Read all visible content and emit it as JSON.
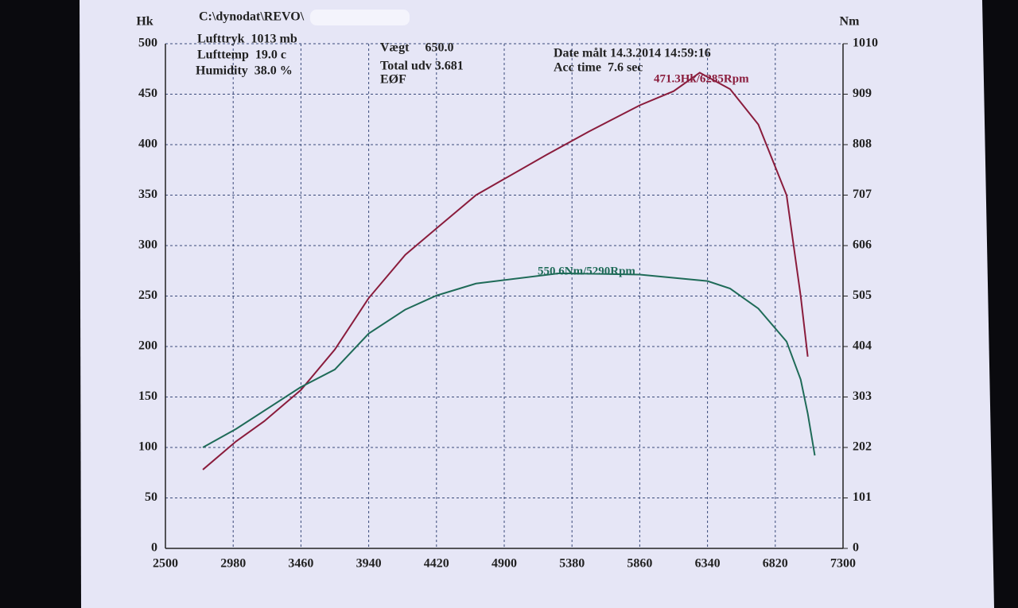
{
  "chart_data": {
    "type": "line",
    "title": "C:\\dynodat\\REVO\\",
    "info": [
      "Lufttryk  1013 mb",
      "Lufttemp  19.0 c",
      "Humidity  38.0 %",
      "Vægt     650.0",
      "Total udv 3.681",
      "EØF",
      "Date målt 14.3.2014 14:59:16",
      "Acc time  7.6 sec"
    ],
    "annotations": [
      "471.3Hk/6285Rpm",
      "550.6Nm/5290Rpm"
    ],
    "xlim": [
      2500,
      7300
    ],
    "xticks": [
      2500,
      2980,
      3460,
      3940,
      4420,
      4900,
      5380,
      5860,
      6340,
      6820,
      7300
    ],
    "ylim": [
      0,
      500
    ],
    "yticks": [
      0,
      50,
      100,
      150,
      200,
      250,
      300,
      350,
      400,
      450,
      500
    ],
    "y2lim": [
      0,
      1010
    ],
    "y2ticks": [
      0,
      101,
      202,
      303,
      404,
      505,
      606,
      707,
      808,
      909,
      1010
    ],
    "grid": true,
    "series": [
      {
        "name": "Hk",
        "color": "#8a1c3c",
        "x": [
          2765,
          3000,
          3200,
          3460,
          3700,
          3940,
          4200,
          4420,
          4700,
          4900,
          5200,
          5500,
          5860,
          6100,
          6285,
          6500,
          6700,
          6900,
          7000,
          7050
        ],
        "values": [
          78,
          106,
          126,
          157,
          197,
          248,
          291,
          317,
          350,
          366,
          390,
          413,
          439,
          453,
          471.3,
          455,
          420,
          350,
          250,
          190
        ]
      },
      {
        "name": "Nm",
        "color": "#1f6b58",
        "axis": "y2",
        "x": [
          2765,
          3000,
          3460,
          3700,
          3940,
          4200,
          4420,
          4700,
          4900,
          5290,
          5860,
          6340,
          6500,
          6700,
          6900,
          7000,
          7050,
          7100
        ],
        "values": [
          202,
          239,
          323,
          358,
          430,
          478,
          506,
          530,
          537,
          550.6,
          548,
          535,
          520,
          480,
          414,
          338,
          270,
          186
        ]
      }
    ]
  }
}
